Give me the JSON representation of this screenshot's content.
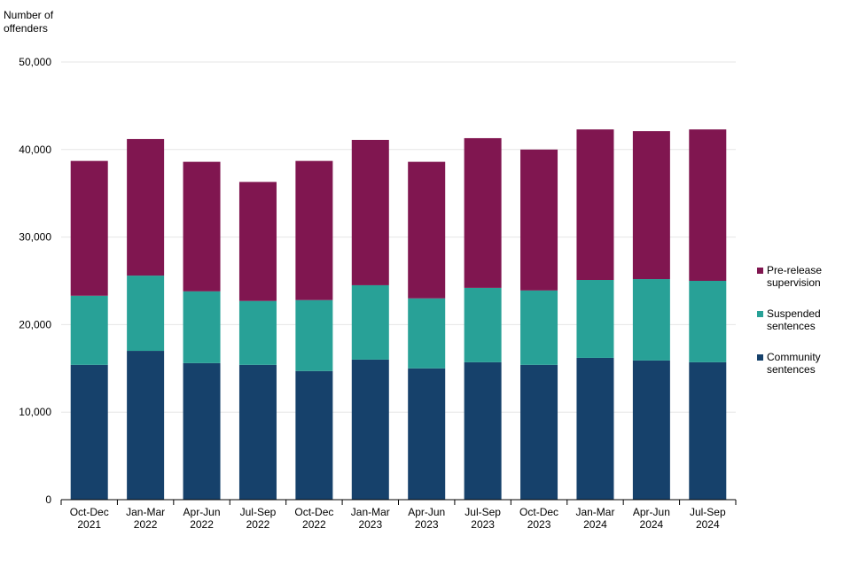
{
  "chart_data": {
    "type": "bar",
    "stacked": true,
    "ylabel": "Number of offenders",
    "ylim": [
      0,
      50000
    ],
    "yticks": [
      0,
      10000,
      20000,
      30000,
      40000,
      50000
    ],
    "ytick_labels": [
      "0",
      "10,000",
      "20,000",
      "30,000",
      "40,000",
      "50,000"
    ],
    "grid": true,
    "legend_position": "right",
    "categories": [
      "Oct-Dec 2021",
      "Jan-Mar 2022",
      "Apr-Jun 2022",
      "Jul-Sep 2022",
      "Oct-Dec 2022",
      "Jan-Mar 2023",
      "Apr-Jun 2023",
      "Jul-Sep 2023",
      "Oct-Dec 2023",
      "Jan-Mar 2024",
      "Apr-Jun 2024",
      "Jul-Sep 2024"
    ],
    "category_lines": [
      [
        "Oct-Dec",
        "2021"
      ],
      [
        "Jan-Mar",
        "2022"
      ],
      [
        "Apr-Jun",
        "2022"
      ],
      [
        "Jul-Sep",
        "2022"
      ],
      [
        "Oct-Dec",
        "2022"
      ],
      [
        "Jan-Mar",
        "2023"
      ],
      [
        "Apr-Jun",
        "2023"
      ],
      [
        "Jul-Sep",
        "2023"
      ],
      [
        "Oct-Dec",
        "2023"
      ],
      [
        "Jan-Mar",
        "2024"
      ],
      [
        "Apr-Jun",
        "2024"
      ],
      [
        "Jul-Sep",
        "2024"
      ]
    ],
    "series": [
      {
        "name": "Community sentences",
        "color": "#16416b",
        "values": [
          15400,
          17000,
          15600,
          15400,
          14700,
          16000,
          15000,
          15700,
          15400,
          16200,
          15900,
          15700
        ]
      },
      {
        "name": "Suspended sentences",
        "color": "#28a197",
        "values": [
          7900,
          8600,
          8200,
          7300,
          8100,
          8500,
          8000,
          8500,
          8500,
          8900,
          9300,
          9300
        ]
      },
      {
        "name": "Pre-release supervision",
        "color": "#801650",
        "values": [
          15400,
          15600,
          14800,
          13600,
          15900,
          16600,
          15600,
          17100,
          16100,
          17200,
          16900,
          17300
        ]
      }
    ]
  },
  "legend": {
    "items": [
      {
        "lines": [
          "Pre-release",
          "supervision"
        ],
        "color": "#801650"
      },
      {
        "lines": [
          "Suspended",
          "sentences"
        ],
        "color": "#28a197"
      },
      {
        "lines": [
          "Community",
          "sentences"
        ],
        "color": "#16416b"
      }
    ]
  },
  "ytitle_lines": [
    "Number of",
    "offenders"
  ]
}
